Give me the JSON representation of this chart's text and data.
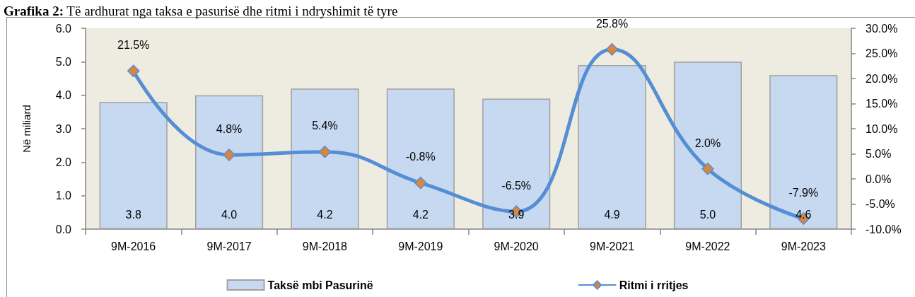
{
  "chart_data": {
    "type": "bar",
    "title": "Grafika 2: Të ardhurat nga taksa e pasurisë dhe ritmi i ndryshimit të tyre",
    "ylabel": "Në miliard",
    "categories": [
      "9M-2016",
      "9M-2017",
      "9M-2018",
      "9M-2019",
      "9M-2020",
      "9M-2021",
      "9M-2022",
      "9M-2023"
    ],
    "series": [
      {
        "name": "Taksë mbi Pasurinë",
        "color": "#c6d9f1",
        "values": [
          3.8,
          4.0,
          4.2,
          4.2,
          3.9,
          4.9,
          5.0,
          4.6
        ],
        "value_labels": [
          "3.8",
          "4.0",
          "4.2",
          "4.2",
          "3.9",
          "4.9",
          "5.0",
          "4.6"
        ]
      },
      {
        "name": "Ritmi i rritjes",
        "type": "line",
        "axis": "y2",
        "marker": "diamond",
        "color": "#558ed5",
        "colors": [
          "#dd8538",
          "#dd8538",
          "#dd8538",
          "#dd8538",
          "#dd8538",
          "#dd8538",
          "#dd8538",
          "#dd8538"
        ],
        "values": [
          21.5,
          4.8,
          5.4,
          -0.8,
          -6.5,
          25.8,
          2.0,
          -7.9
        ],
        "value_labels": [
          "21.5%",
          "4.8%",
          "5.4%",
          "-0.8%",
          "-6.5%",
          "25.8%",
          "2.0%",
          "-7.9%"
        ]
      }
    ],
    "ylim": [
      0,
      6
    ],
    "yticks": [
      {
        "value": 0,
        "label": "0.0"
      },
      {
        "value": 1,
        "label": "1.0"
      },
      {
        "value": 2,
        "label": "2.0"
      },
      {
        "value": 3,
        "label": "3.0"
      },
      {
        "value": 4,
        "label": "4.0"
      },
      {
        "value": 5,
        "label": "5.0"
      },
      {
        "value": 6,
        "label": "6.0"
      }
    ],
    "y2lim": [
      -10,
      30
    ],
    "y2ticks": [
      {
        "value": -10,
        "label": "-10.0%"
      },
      {
        "value": -5,
        "label": "-5.0%"
      },
      {
        "value": 0,
        "label": "0.0%"
      },
      {
        "value": 5,
        "label": "5.0%"
      },
      {
        "value": 10,
        "label": "10.0%"
      },
      {
        "value": 15,
        "label": "15.0%"
      },
      {
        "value": 20,
        "label": "20.0%"
      },
      {
        "value": 25,
        "label": "25.0%"
      },
      {
        "value": 30,
        "label": "30.0%"
      }
    ],
    "legend": "bottom"
  }
}
